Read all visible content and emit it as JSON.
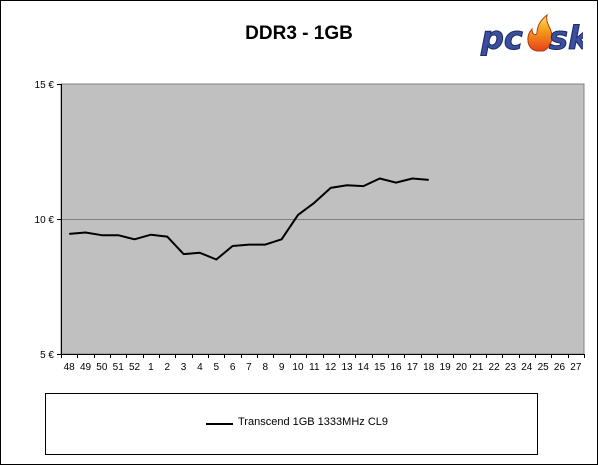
{
  "title": "DDR3 - 1GB",
  "logo_text": "pcesk",
  "chart_data": {
    "type": "line",
    "title": "DDR3 - 1GB",
    "xlabel": "",
    "ylabel": "",
    "categories": [
      "48",
      "49",
      "50",
      "51",
      "52",
      "1",
      "2",
      "3",
      "4",
      "5",
      "6",
      "7",
      "8",
      "9",
      "10",
      "11",
      "12",
      "13",
      "14",
      "15",
      "16",
      "17",
      "18",
      "19",
      "20",
      "21",
      "22",
      "23",
      "24",
      "25",
      "26",
      "27"
    ],
    "y_ticks": [
      {
        "value": 15,
        "label": "15 €"
      },
      {
        "value": 10,
        "label": "10 €"
      },
      {
        "value": 5,
        "label": "5 €"
      }
    ],
    "ylim": [
      5,
      15
    ],
    "grid": "horizontal",
    "legend_position": "bottom",
    "series": [
      {
        "name": "Transcend 1GB 1333MHz CL9",
        "color": "#000000",
        "values": [
          9.45,
          9.5,
          9.4,
          9.4,
          9.25,
          9.42,
          9.35,
          8.7,
          8.75,
          8.5,
          9.0,
          9.05,
          9.05,
          9.25,
          10.15,
          10.6,
          11.15,
          11.25,
          11.22,
          11.5,
          11.35,
          11.5,
          11.45,
          null,
          null,
          null,
          null,
          null,
          null,
          null,
          null,
          null
        ]
      }
    ]
  },
  "colors": {
    "plot_background": "#c0c0c0",
    "gridline": "#808080",
    "logo_blue": "#3a4f9e",
    "logo_flame": "#f08a1a"
  }
}
